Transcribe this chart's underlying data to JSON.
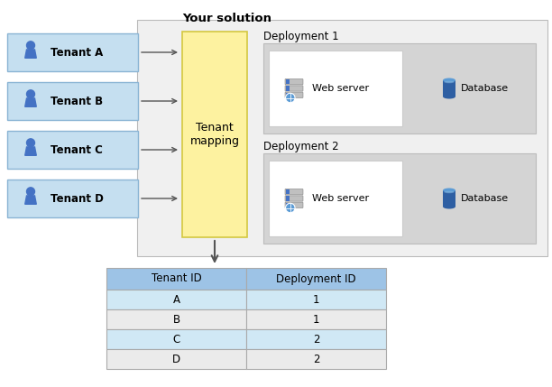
{
  "title": "Your solution",
  "tenant_labels": [
    "Tenant A",
    "Tenant B",
    "Tenant C",
    "Tenant D"
  ],
  "tenant_box_color": "#c5dff0",
  "tenant_box_edge": "#8ab4d4",
  "mapping_box_color": "#fdf2a0",
  "mapping_box_edge": "#d4c840",
  "mapping_text": "Tenant\nmapping",
  "solution_box_color": "#f0f0f0",
  "solution_box_edge": "#bbbbbb",
  "deployment_labels": [
    "Deployment 1",
    "Deployment 2"
  ],
  "deploy_inner_color": "#d4d4d4",
  "deploy_inner_edge": "#bbbbbb",
  "webserver_box_color": "#ffffff",
  "webserver_box_edge": "#cccccc",
  "table_header_color": "#9dc3e6",
  "table_row_colors": [
    "#d0e8f5",
    "#ebebeb",
    "#d0e8f5",
    "#ebebeb"
  ],
  "table_border_color": "#aaaaaa",
  "table_col1_header": "Tenant ID",
  "table_col2_header": "Deployment ID",
  "table_rows": [
    [
      "A",
      "1"
    ],
    [
      "B",
      "1"
    ],
    [
      "C",
      "2"
    ],
    [
      "D",
      "2"
    ]
  ],
  "arrow_color": "#555555",
  "person_color": "#4472c4",
  "server_color": "#888888",
  "server_strip_color": "#4472c4",
  "server_globe_color": "#5b9bd5",
  "database_body_color": "#2e5fa3",
  "database_top_color": "#5b9bd5",
  "fig_w": 6.12,
  "fig_h": 4.29,
  "dpi": 100
}
